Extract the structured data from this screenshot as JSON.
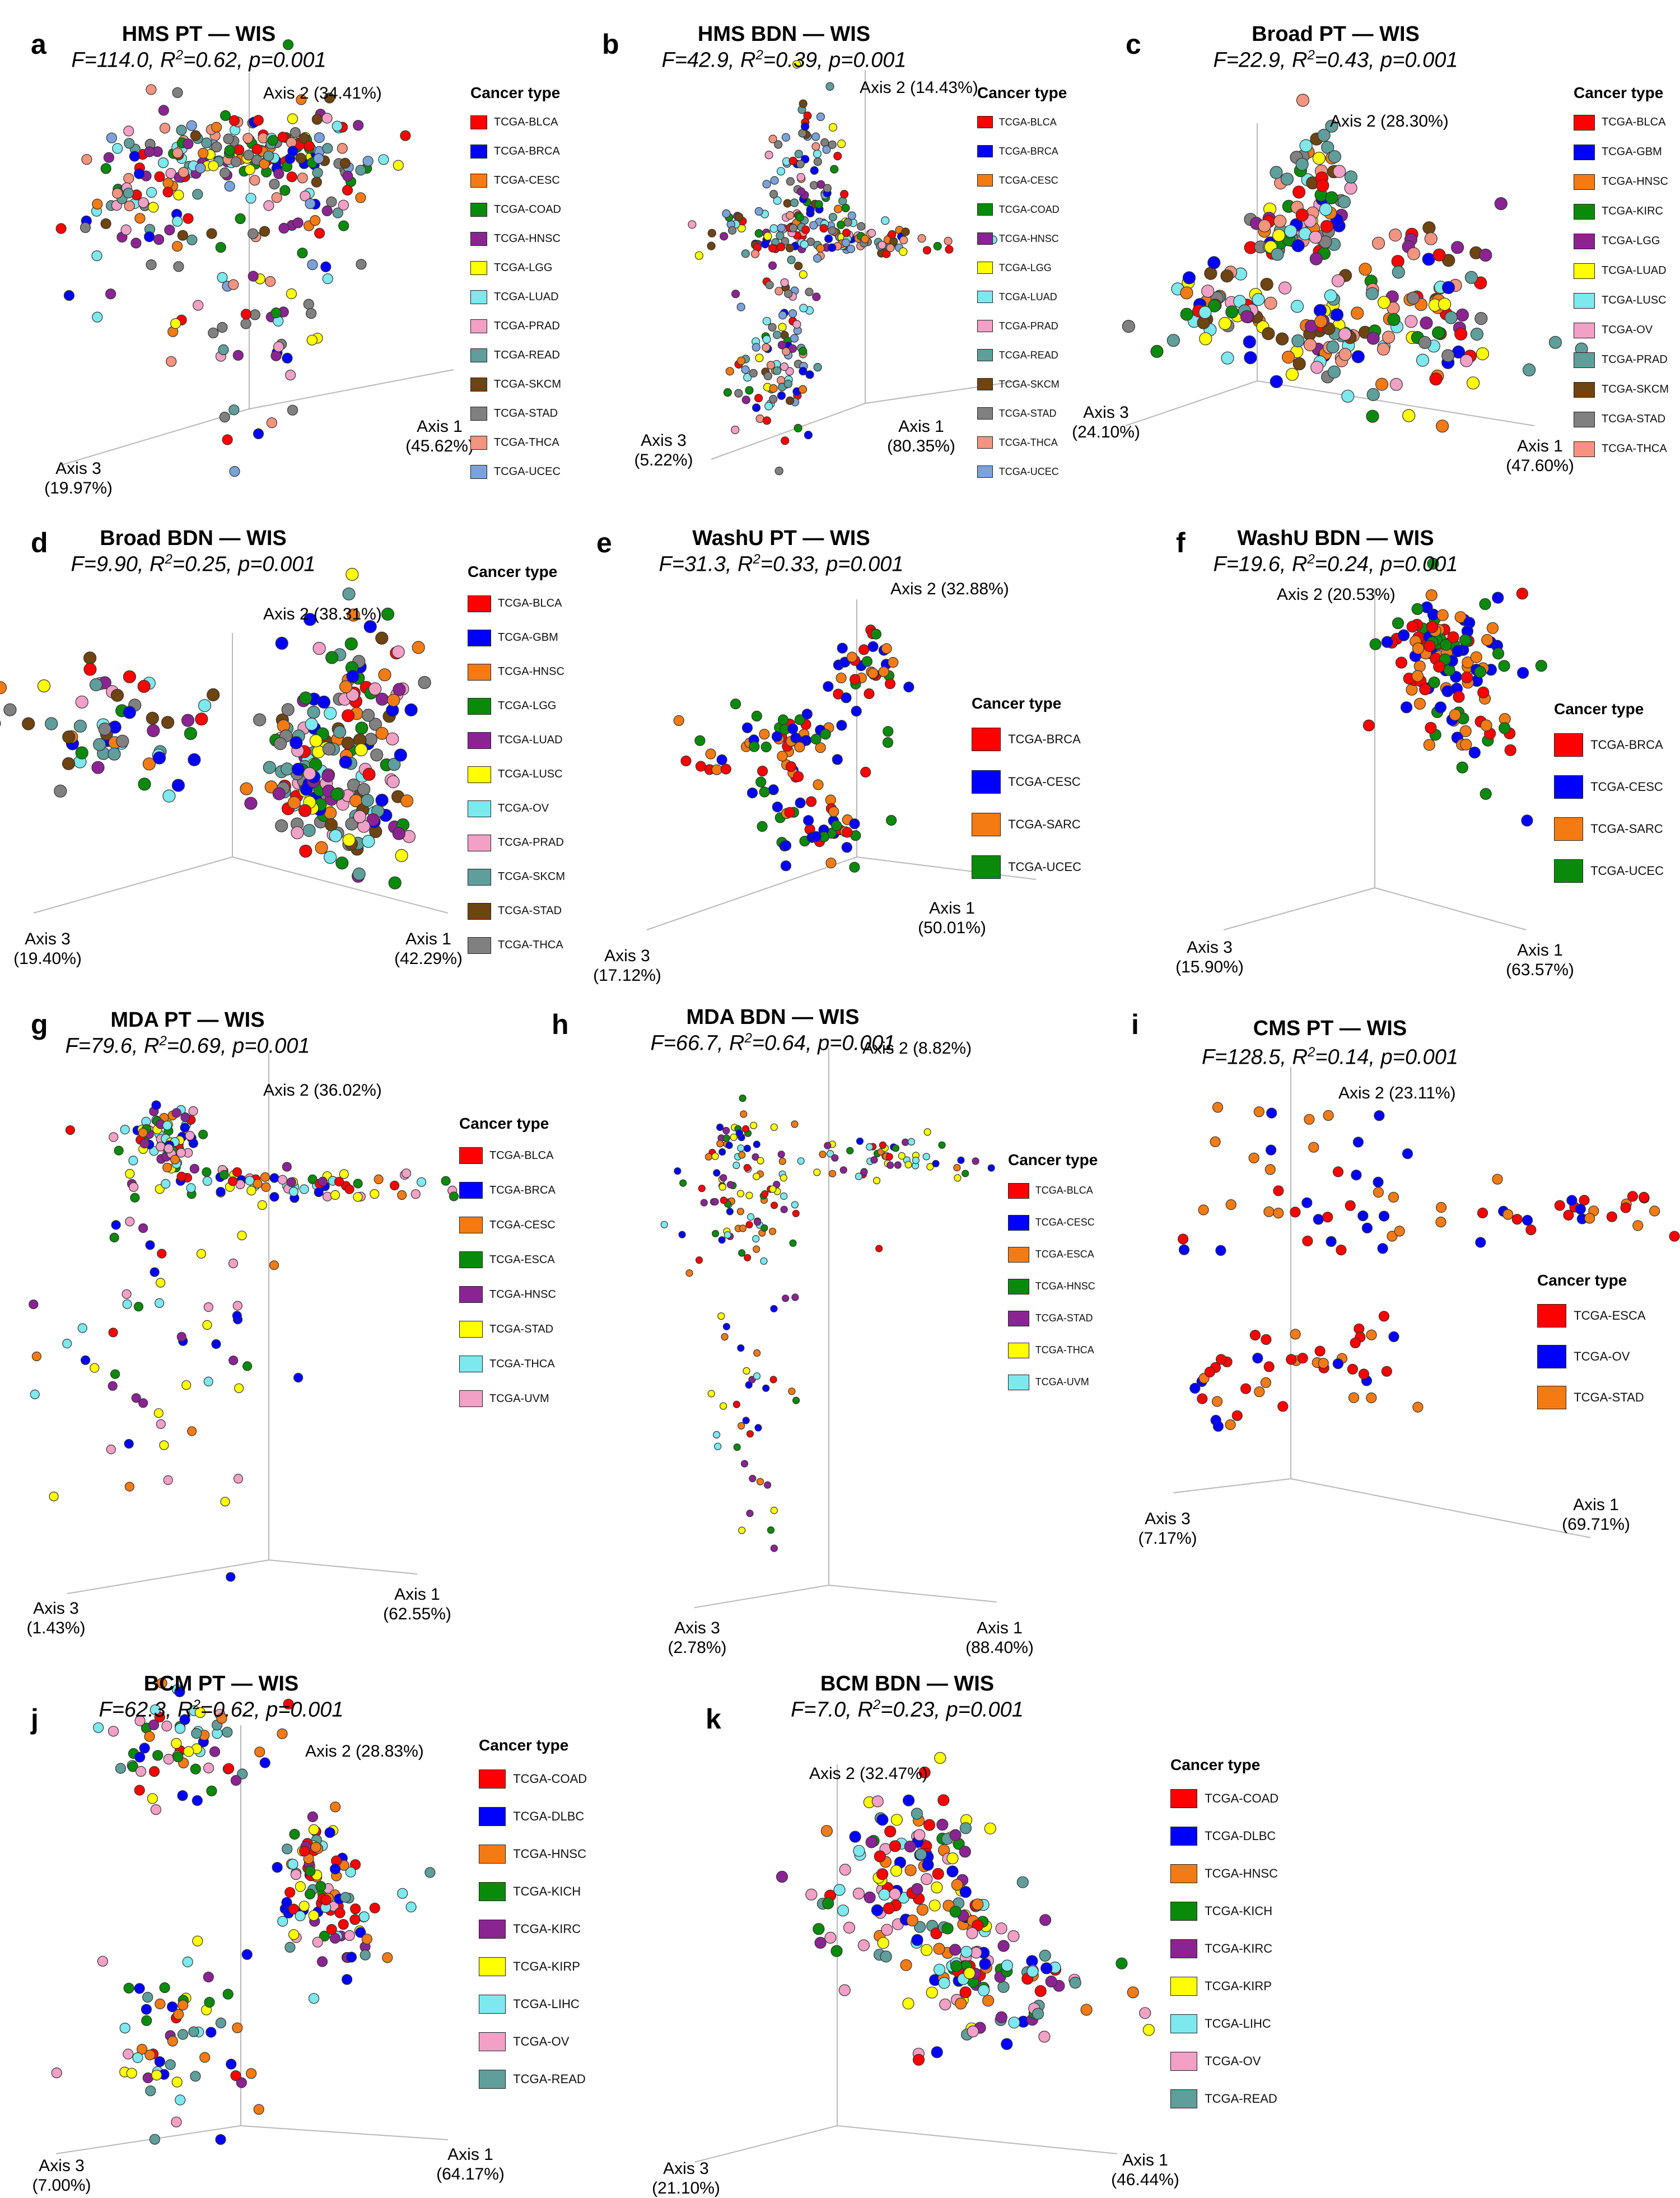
{
  "legend_title": "Cancer type",
  "colors": {
    "red": "#FF0000",
    "blue": "#0000FF",
    "orange": "#F47B13",
    "green": "#0A8A0A",
    "purple": "#8B2493",
    "yellow": "#FFFF00",
    "cyan": "#7DE8EE",
    "pink": "#F2A0C6",
    "teal": "#5F9E9A",
    "brown": "#6E4411",
    "gray": "#808080",
    "salmon": "#F29480",
    "steel": "#7BA2D9"
  },
  "chart_data": [
    {
      "id": "a",
      "type": "scatter",
      "title": "HMS PT — WIS",
      "stats": {
        "F": "114.0",
        "R2": "0.62",
        "p": "0.001"
      },
      "axis1": "Axis 1",
      "axis1_pct": "(45.62%)",
      "axis2": "Axis 2",
      "axis2_pct": "(34.41%)",
      "axis3": "Axis 3",
      "axis3_pct": "(19.97%)",
      "series": [
        {
          "name": "TCGA-BLCA",
          "color": "red"
        },
        {
          "name": "TCGA-BRCA",
          "color": "blue"
        },
        {
          "name": "TCGA-CESC",
          "color": "orange"
        },
        {
          "name": "TCGA-COAD",
          "color": "green"
        },
        {
          "name": "TCGA-HNSC",
          "color": "purple"
        },
        {
          "name": "TCGA-LGG",
          "color": "yellow"
        },
        {
          "name": "TCGA-LUAD",
          "color": "cyan"
        },
        {
          "name": "TCGA-PRAD",
          "color": "pink"
        },
        {
          "name": "TCGA-READ",
          "color": "teal"
        },
        {
          "name": "TCGA-SKCM",
          "color": "brown"
        },
        {
          "name": "TCGA-STAD",
          "color": "gray"
        },
        {
          "name": "TCGA-THCA",
          "color": "salmon"
        },
        {
          "name": "TCGA-UCEC",
          "color": "steel"
        }
      ]
    },
    {
      "id": "b",
      "type": "scatter",
      "title": "HMS BDN — WIS",
      "stats": {
        "F": "42.9",
        "R2": "0.39",
        "p": "0.001"
      },
      "axis1": "Axis 1",
      "axis1_pct": "(80.35%)",
      "axis2": "Axis 2",
      "axis2_pct": "(14.43%)",
      "axis3": "Axis 3",
      "axis3_pct": "(5.22%)",
      "series": [
        {
          "name": "TCGA-BLCA",
          "color": "red"
        },
        {
          "name": "TCGA-BRCA",
          "color": "blue"
        },
        {
          "name": "TCGA-CESC",
          "color": "orange"
        },
        {
          "name": "TCGA-COAD",
          "color": "green"
        },
        {
          "name": "TCGA-HNSC",
          "color": "purple"
        },
        {
          "name": "TCGA-LGG",
          "color": "yellow"
        },
        {
          "name": "TCGA-LUAD",
          "color": "cyan"
        },
        {
          "name": "TCGA-PRAD",
          "color": "pink"
        },
        {
          "name": "TCGA-READ",
          "color": "teal"
        },
        {
          "name": "TCGA-SKCM",
          "color": "brown"
        },
        {
          "name": "TCGA-STAD",
          "color": "gray"
        },
        {
          "name": "TCGA-THCA",
          "color": "salmon"
        },
        {
          "name": "TCGA-UCEC",
          "color": "steel"
        }
      ]
    },
    {
      "id": "c",
      "type": "scatter",
      "title": "Broad PT — WIS",
      "stats": {
        "F": "22.9",
        "R2": "0.43",
        "p": "0.001"
      },
      "axis1": "Axis 1",
      "axis1_pct": "(47.60%)",
      "axis2": "Axis 2",
      "axis2_pct": "(28.30%)",
      "axis3": "Axis 3",
      "axis3_pct": "(24.10%)",
      "series": [
        {
          "name": "TCGA-BLCA",
          "color": "red"
        },
        {
          "name": "TCGA-GBM",
          "color": "blue"
        },
        {
          "name": "TCGA-HNSC",
          "color": "orange"
        },
        {
          "name": "TCGA-KIRC",
          "color": "green"
        },
        {
          "name": "TCGA-LGG",
          "color": "purple"
        },
        {
          "name": "TCGA-LUAD",
          "color": "yellow"
        },
        {
          "name": "TCGA-LUSC",
          "color": "cyan"
        },
        {
          "name": "TCGA-OV",
          "color": "pink"
        },
        {
          "name": "TCGA-PRAD",
          "color": "teal"
        },
        {
          "name": "TCGA-SKCM",
          "color": "brown"
        },
        {
          "name": "TCGA-STAD",
          "color": "gray"
        },
        {
          "name": "TCGA-THCA",
          "color": "salmon"
        }
      ]
    },
    {
      "id": "d",
      "type": "scatter",
      "title": "Broad BDN — WIS",
      "stats": {
        "F": "9.90",
        "R2": "0.25",
        "p": "0.001"
      },
      "axis1": "Axis 1",
      "axis1_pct": "(42.29%)",
      "axis2": "Axis 2",
      "axis2_pct": "(38.31%)",
      "axis3": "Axis 3",
      "axis3_pct": "(19.40%)",
      "series": [
        {
          "name": "TCGA-BLCA",
          "color": "red"
        },
        {
          "name": "TCGA-GBM",
          "color": "blue"
        },
        {
          "name": "TCGA-HNSC",
          "color": "orange"
        },
        {
          "name": "TCGA-LGG",
          "color": "green"
        },
        {
          "name": "TCGA-LUAD",
          "color": "purple"
        },
        {
          "name": "TCGA-LUSC",
          "color": "yellow"
        },
        {
          "name": "TCGA-OV",
          "color": "cyan"
        },
        {
          "name": "TCGA-PRAD",
          "color": "pink"
        },
        {
          "name": "TCGA-SKCM",
          "color": "teal"
        },
        {
          "name": "TCGA-STAD",
          "color": "brown"
        },
        {
          "name": "TCGA-THCA",
          "color": "gray"
        }
      ]
    },
    {
      "id": "e",
      "type": "scatter",
      "title": "WashU PT — WIS",
      "stats": {
        "F": "31.3",
        "R2": "0.33",
        "p": "0.001"
      },
      "axis1": "Axis 1",
      "axis1_pct": "(50.01%)",
      "axis2": "Axis 2",
      "axis2_pct": "(32.88%)",
      "axis3": "Axis 3",
      "axis3_pct": "(17.12%)",
      "series": [
        {
          "name": "TCGA-BRCA",
          "color": "red"
        },
        {
          "name": "TCGA-CESC",
          "color": "blue"
        },
        {
          "name": "TCGA-SARC",
          "color": "orange"
        },
        {
          "name": "TCGA-UCEC",
          "color": "green"
        }
      ]
    },
    {
      "id": "f",
      "type": "scatter",
      "title": "WashU BDN — WIS",
      "stats": {
        "F": "19.6",
        "R2": "0.24",
        "p": "0.001"
      },
      "axis1": "Axis 1",
      "axis1_pct": "(63.57%)",
      "axis2": "Axis 2",
      "axis2_pct": "(20.53%)",
      "axis3": "Axis 3",
      "axis3_pct": "(15.90%)",
      "series": [
        {
          "name": "TCGA-BRCA",
          "color": "red"
        },
        {
          "name": "TCGA-CESC",
          "color": "blue"
        },
        {
          "name": "TCGA-SARC",
          "color": "orange"
        },
        {
          "name": "TCGA-UCEC",
          "color": "green"
        }
      ]
    },
    {
      "id": "g",
      "type": "scatter",
      "title": "MDA PT — WIS",
      "stats": {
        "F": "79.6",
        "R2": "0.69",
        "p": "0.001"
      },
      "axis1": "Axis 1",
      "axis1_pct": "(62.55%)",
      "axis2": "Axis 2",
      "axis2_pct": "(36.02%)",
      "axis3": "Axis 3",
      "axis3_pct": "(1.43%)",
      "series": [
        {
          "name": "TCGA-BLCA",
          "color": "red"
        },
        {
          "name": "TCGA-BRCA",
          "color": "blue"
        },
        {
          "name": "TCGA-CESC",
          "color": "orange"
        },
        {
          "name": "TCGA-ESCA",
          "color": "green"
        },
        {
          "name": "TCGA-HNSC",
          "color": "purple"
        },
        {
          "name": "TCGA-STAD",
          "color": "yellow"
        },
        {
          "name": "TCGA-THCA",
          "color": "cyan"
        },
        {
          "name": "TCGA-UVM",
          "color": "pink"
        }
      ]
    },
    {
      "id": "h",
      "type": "scatter",
      "title": "MDA BDN — WIS",
      "stats": {
        "F": "66.7",
        "R2": "0.64",
        "p": "0.001"
      },
      "axis1": "Axis 1",
      "axis1_pct": "(88.40%)",
      "axis2": "Axis 2",
      "axis2_pct": "(8.82%)",
      "axis3": "Axis 3",
      "axis3_pct": "(2.78%)",
      "series": [
        {
          "name": "TCGA-BLCA",
          "color": "red"
        },
        {
          "name": "TCGA-CESC",
          "color": "blue"
        },
        {
          "name": "TCGA-ESCA",
          "color": "orange"
        },
        {
          "name": "TCGA-HNSC",
          "color": "green"
        },
        {
          "name": "TCGA-STAD",
          "color": "purple"
        },
        {
          "name": "TCGA-THCA",
          "color": "yellow"
        },
        {
          "name": "TCGA-UVM",
          "color": "cyan"
        }
      ]
    },
    {
      "id": "i",
      "type": "scatter",
      "title": "CMS PT — WIS",
      "stats": {
        "F": "128.5",
        "R2": "0.14",
        "p": "0.001"
      },
      "axis1": "Axis 1",
      "axis1_pct": "(69.71%)",
      "axis2": "Axis 2",
      "axis2_pct": "(23.11%)",
      "axis3": "Axis 3",
      "axis3_pct": "(7.17%)",
      "series": [
        {
          "name": "TCGA-ESCA",
          "color": "red"
        },
        {
          "name": "TCGA-OV",
          "color": "blue"
        },
        {
          "name": "TCGA-STAD",
          "color": "orange"
        }
      ]
    },
    {
      "id": "j",
      "type": "scatter",
      "title": "BCM PT — WIS",
      "stats": {
        "F": "62.3",
        "R2": "0.62",
        "p": "0.001"
      },
      "axis1": "Axis 1",
      "axis1_pct": "(64.17%)",
      "axis2": "Axis 2",
      "axis2_pct": "(28.83%)",
      "axis3": "Axis 3",
      "axis3_pct": "(7.00%)",
      "series": [
        {
          "name": "TCGA-COAD",
          "color": "red"
        },
        {
          "name": "TCGA-DLBC",
          "color": "blue"
        },
        {
          "name": "TCGA-HNSC",
          "color": "orange"
        },
        {
          "name": "TCGA-KICH",
          "color": "green"
        },
        {
          "name": "TCGA-KIRC",
          "color": "purple"
        },
        {
          "name": "TCGA-KIRP",
          "color": "yellow"
        },
        {
          "name": "TCGA-LIHC",
          "color": "cyan"
        },
        {
          "name": "TCGA-OV",
          "color": "pink"
        },
        {
          "name": "TCGA-READ",
          "color": "teal"
        }
      ]
    },
    {
      "id": "k",
      "type": "scatter",
      "title": "BCM BDN — WIS",
      "stats": {
        "F": "7.0",
        "R2": "0.23",
        "p": "0.001"
      },
      "axis1": "Axis 1",
      "axis1_pct": "(46.44%)",
      "axis2": "Axis 2",
      "axis2_pct": "(32.47%)",
      "axis3": "Axis 3",
      "axis3_pct": "(21.10%)",
      "series": [
        {
          "name": "TCGA-COAD",
          "color": "red"
        },
        {
          "name": "TCGA-DLBC",
          "color": "blue"
        },
        {
          "name": "TCGA-HNSC",
          "color": "orange"
        },
        {
          "name": "TCGA-KICH",
          "color": "green"
        },
        {
          "name": "TCGA-KIRC",
          "color": "purple"
        },
        {
          "name": "TCGA-KIRP",
          "color": "yellow"
        },
        {
          "name": "TCGA-LIHC",
          "color": "cyan"
        },
        {
          "name": "TCGA-OV",
          "color": "pink"
        },
        {
          "name": "TCGA-READ",
          "color": "teal"
        }
      ]
    }
  ]
}
